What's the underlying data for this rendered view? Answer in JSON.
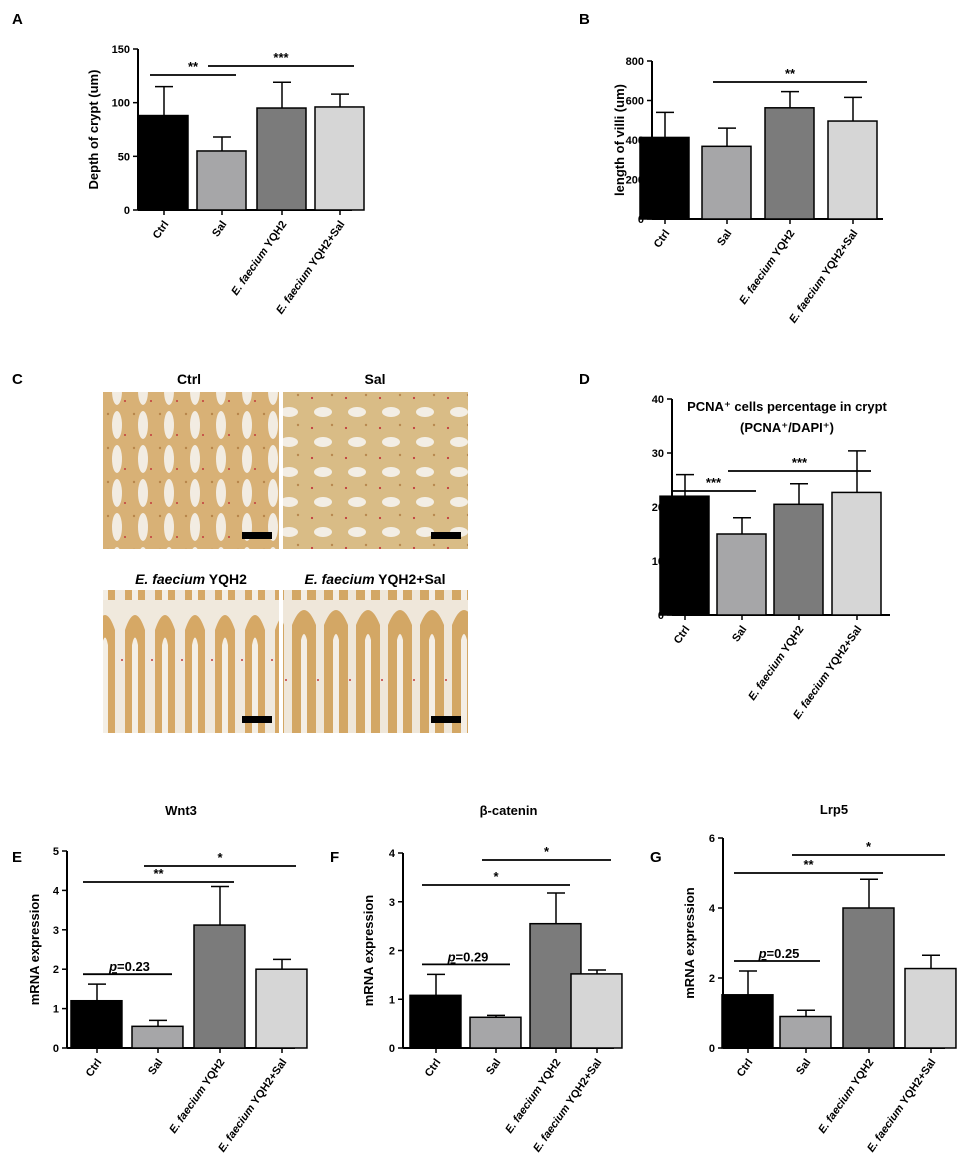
{
  "categories": [
    "Ctrl",
    "Sal",
    "E. faecium YQH2",
    "E. faecium YQH2+Sal"
  ],
  "category_parts": [
    {
      "italic": "",
      "rest": "Ctrl"
    },
    {
      "italic": "",
      "rest": "Sal"
    },
    {
      "italic": "E. faecium",
      "rest": " YQH2"
    },
    {
      "italic": "E. faecium",
      "rest": " YQH2+Sal"
    }
  ],
  "colors": [
    "#000000",
    "#a6a6a8",
    "#7b7b7b",
    "#d6d6d6"
  ],
  "panelC": {
    "letter": "C",
    "captions": [
      {
        "italic": "",
        "rest": "Ctrl"
      },
      {
        "italic": "",
        "rest": "Sal"
      },
      {
        "italic": "E. faecium",
        "rest": " YQH2"
      },
      {
        "italic": "E. faecium",
        "rest": " YQH2+Sal"
      }
    ]
  },
  "chart_data": [
    {
      "letter": "A",
      "type": "bar",
      "title": "",
      "ylabel": "Depth of crypt (um)",
      "ylim": [
        0,
        150
      ],
      "yticks": [
        0,
        50,
        100,
        150
      ],
      "values": [
        88,
        55,
        95,
        96
      ],
      "errors": [
        27,
        13,
        24,
        12
      ],
      "sig": [
        {
          "from": 0,
          "to": 1,
          "label": "**"
        },
        {
          "from": 1,
          "to": 3,
          "label": "***"
        }
      ]
    },
    {
      "letter": "B",
      "type": "bar",
      "title": "",
      "ylabel": "length of villi (um)",
      "ylim": [
        0,
        800
      ],
      "yticks": [
        0,
        200,
        400,
        600,
        800
      ],
      "values": [
        413,
        368,
        563,
        496
      ],
      "errors": [
        127,
        92,
        82,
        120
      ],
      "sig": [
        {
          "from": 1,
          "to": 3,
          "label": "**"
        }
      ]
    },
    {
      "letter": "D",
      "type": "bar",
      "title": "PCNA⁺ cells percentage in crypt",
      "subtitle": "(PCNA⁺/DAPI⁺)",
      "ylabel": "",
      "ylim": [
        0,
        40
      ],
      "yticks": [
        0,
        10,
        20,
        30,
        40
      ],
      "values": [
        22,
        15,
        20.5,
        22.7
      ],
      "errors": [
        4,
        3,
        3.8,
        7.7
      ],
      "sig": [
        {
          "from": 0,
          "to": 1,
          "label": "***"
        },
        {
          "from": 1,
          "to": 3,
          "label": "***"
        }
      ]
    },
    {
      "letter": "E",
      "type": "bar",
      "title": "Wnt3",
      "ylabel": "mRNA expression",
      "ylim": [
        0,
        5
      ],
      "yticks": [
        0,
        1,
        2,
        3,
        4,
        5
      ],
      "values": [
        1.2,
        0.55,
        3.12,
        2.0
      ],
      "errors": [
        0.42,
        0.15,
        0.98,
        0.25
      ],
      "sig": [
        {
          "from": 1,
          "to": 3,
          "label": "*"
        },
        {
          "from": 0,
          "to": 2,
          "label": "**"
        }
      ],
      "pval": {
        "from": 0,
        "to": 1,
        "label": "p=0.23"
      }
    },
    {
      "letter": "F",
      "type": "bar",
      "title": "β-catenin",
      "ylabel": "mRNA expression",
      "ylim": [
        0,
        4
      ],
      "yticks": [
        0,
        1,
        2,
        3,
        4
      ],
      "values": [
        1.08,
        0.63,
        2.55,
        1.52
      ],
      "errors": [
        0.43,
        0.04,
        0.63,
        0.08
      ],
      "sig": [
        {
          "from": 1,
          "to": 3,
          "label": "*"
        },
        {
          "from": 0,
          "to": 2,
          "label": "*"
        }
      ],
      "pval": {
        "from": 0,
        "to": 1,
        "label": "p=0.29"
      }
    },
    {
      "letter": "G",
      "type": "bar",
      "title": "Lrp5",
      "ylabel": "mRNA expression",
      "ylim": [
        0,
        6
      ],
      "yticks": [
        0,
        2,
        4,
        6
      ],
      "values": [
        1.52,
        0.9,
        4.0,
        2.27
      ],
      "errors": [
        0.68,
        0.18,
        0.82,
        0.38
      ],
      "sig": [
        {
          "from": 1,
          "to": 3,
          "label": "*"
        },
        {
          "from": 0,
          "to": 2,
          "label": "**"
        }
      ],
      "pval": {
        "from": 0,
        "to": 1,
        "label": "p=0.25"
      }
    }
  ]
}
